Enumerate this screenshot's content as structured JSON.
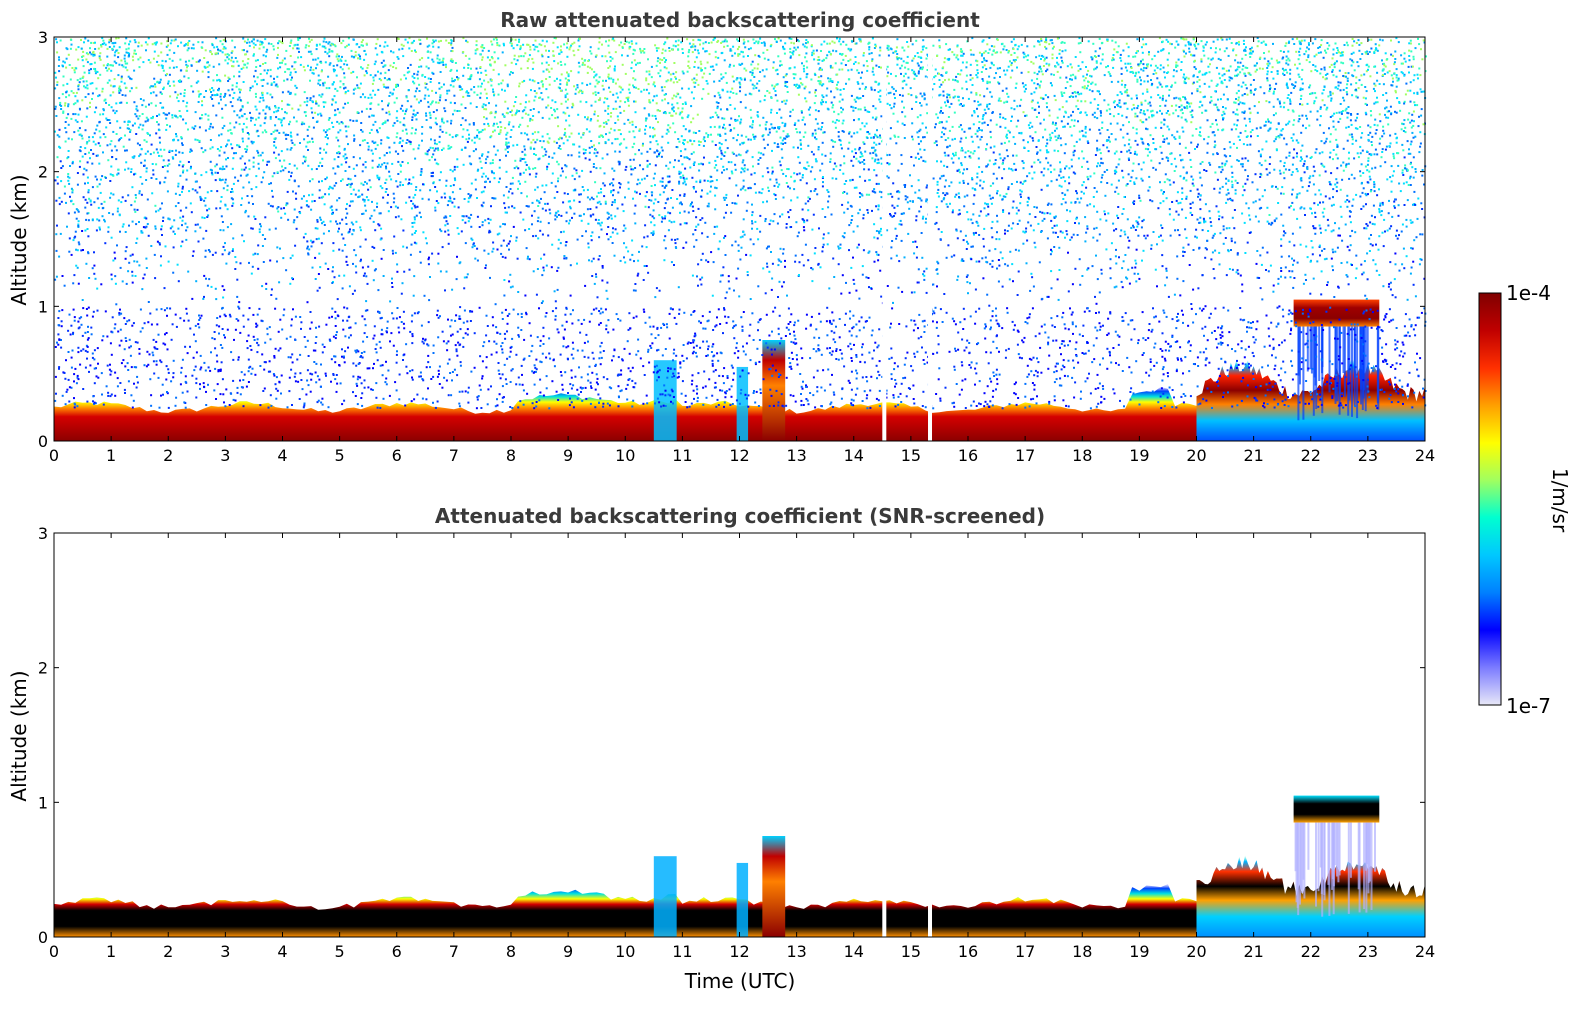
{
  "chart_data": [
    {
      "type": "heatmap",
      "title": "Raw attenuated backscattering coefficient",
      "xlabel": "",
      "ylabel": "Altitude (km)",
      "xlim": [
        0,
        24
      ],
      "ylim": [
        0,
        3
      ],
      "x_ticks": [
        "0",
        "1",
        "2",
        "3",
        "4",
        "5",
        "6",
        "7",
        "8",
        "9",
        "10",
        "11",
        "12",
        "13",
        "14",
        "15",
        "16",
        "17",
        "18",
        "19",
        "20",
        "21",
        "22",
        "23",
        "24"
      ],
      "y_ticks": [
        "0",
        "1",
        "2",
        "3"
      ],
      "features": [
        {
          "kind": "boundary_layer",
          "x": [
            0,
            20
          ],
          "y": [
            0,
            0.25
          ],
          "level": "high"
        },
        {
          "kind": "aerosol_layer",
          "x": [
            20,
            24
          ],
          "y": [
            0,
            0.5
          ],
          "level": "high"
        },
        {
          "kind": "plume",
          "x": [
            12.4,
            12.8
          ],
          "y": [
            0,
            0.75
          ],
          "level": "high"
        },
        {
          "kind": "cloud",
          "x": [
            21.7,
            23.2
          ],
          "y": [
            0.85,
            1.05
          ],
          "level": "high"
        },
        {
          "kind": "noise",
          "x": [
            0,
            24
          ],
          "y": [
            1,
            3
          ],
          "level": "low"
        }
      ]
    },
    {
      "type": "heatmap",
      "title": "Attenuated backscattering coefficient (SNR-screened)",
      "xlabel": "Time (UTC)",
      "ylabel": "Altitude (km)",
      "xlim": [
        0,
        24
      ],
      "ylim": [
        0,
        3
      ],
      "x_ticks": [
        "0",
        "1",
        "2",
        "3",
        "4",
        "5",
        "6",
        "7",
        "8",
        "9",
        "10",
        "11",
        "12",
        "13",
        "14",
        "15",
        "16",
        "17",
        "18",
        "19",
        "20",
        "21",
        "22",
        "23",
        "24"
      ],
      "y_ticks": [
        "0",
        "1",
        "2",
        "3"
      ],
      "features": [
        {
          "kind": "boundary_layer",
          "x": [
            0,
            20
          ],
          "y": [
            0,
            0.25
          ],
          "level": "high"
        },
        {
          "kind": "aerosol_layer",
          "x": [
            20,
            24
          ],
          "y": [
            0,
            0.5
          ],
          "level": "high"
        },
        {
          "kind": "plume",
          "x": [
            12.4,
            12.8
          ],
          "y": [
            0,
            0.75
          ],
          "level": "high"
        },
        {
          "kind": "cloud",
          "x": [
            21.7,
            23.2
          ],
          "y": [
            0.85,
            1.05
          ],
          "level": "high"
        }
      ]
    }
  ],
  "colorbar": {
    "label": "1/m/sr",
    "max_label": "1e-4",
    "min_label": "1e-7",
    "colors": [
      "#e8e8f8",
      "#7b7bff",
      "#0000ff",
      "#0080ff",
      "#00c8ff",
      "#00ffd0",
      "#a0ff60",
      "#ffff00",
      "#ffa000",
      "#ff3000",
      "#c00000",
      "#800000"
    ]
  }
}
